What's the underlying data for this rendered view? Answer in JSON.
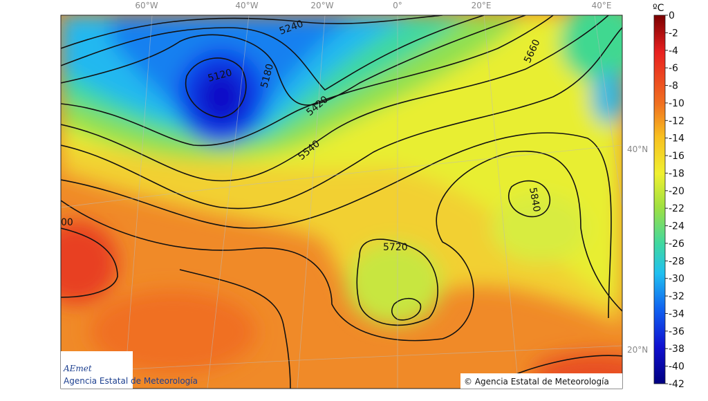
{
  "map": {
    "longitude_labels": [
      "60°W",
      "40°W",
      "20°W",
      "0°",
      "20°E",
      "40°E"
    ],
    "latitude_labels": [
      "40°N",
      "20°N"
    ],
    "contour_labels": [
      5240,
      5120,
      5180,
      5420,
      5540,
      5660,
      5840,
      5720,
      "00"
    ],
    "logo": {
      "name": "AEmet",
      "subtitle": "Agencia Estatal de Meteorología"
    },
    "copyright": "© Agencia Estatal de Meteorología"
  },
  "colorbar": {
    "unit": "ºC",
    "ticks": [
      0,
      -2,
      -4,
      -6,
      -8,
      -10,
      -12,
      -14,
      -16,
      -18,
      -20,
      -22,
      -24,
      -26,
      -28,
      -30,
      -32,
      -34,
      -36,
      -38,
      -40,
      -42
    ]
  }
}
